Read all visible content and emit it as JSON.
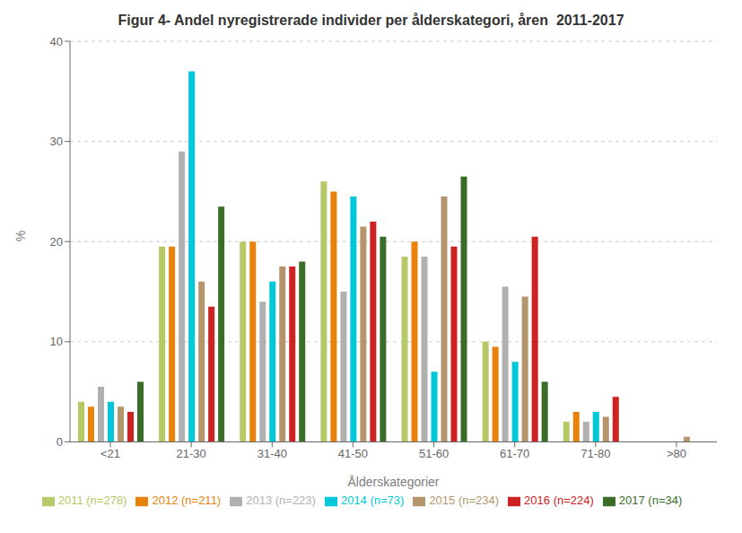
{
  "chart_data": {
    "type": "bar",
    "title": "Figur 4- Andel nyregistrerade individer per ålderskategori, åren  2011-2017",
    "x_label": "Ålderskategorier",
    "y_label": "%",
    "categories": [
      "<21",
      "21-30",
      "31-40",
      "41-50",
      "51-60",
      "61-70",
      "71-80",
      ">80"
    ],
    "series": [
      {
        "name": "2011 (n=278)",
        "color": "#b5c966",
        "values": [
          4.0,
          19.5,
          20.0,
          26.0,
          18.5,
          10.0,
          2.0,
          0.0
        ]
      },
      {
        "name": "2012 (n=211)",
        "color": "#e8820a",
        "values": [
          3.5,
          19.5,
          20.0,
          25.0,
          20.0,
          9.5,
          3.0,
          0.0
        ]
      },
      {
        "name": "2013 (n=223)",
        "color": "#b0b0b0",
        "values": [
          5.5,
          29.0,
          14.0,
          15.0,
          18.5,
          15.5,
          2.0,
          0.0
        ]
      },
      {
        "name": "2014 (n=73)",
        "color": "#00c8d8",
        "values": [
          4.0,
          37.0,
          16.0,
          24.5,
          7.0,
          8.0,
          3.0,
          0.0
        ]
      },
      {
        "name": "2015 (n=234)",
        "color": "#b5956c",
        "values": [
          3.5,
          16.0,
          17.5,
          21.5,
          24.5,
          14.5,
          2.5,
          0.5
        ]
      },
      {
        "name": "2016 (n=224)",
        "color": "#cc2222",
        "values": [
          3.0,
          13.5,
          17.5,
          22.0,
          19.5,
          20.5,
          4.5,
          0.0
        ]
      },
      {
        "name": "2017 (n=34)",
        "color": "#3a6e28",
        "values": [
          6.0,
          23.5,
          18.0,
          20.5,
          26.5,
          6.0,
          0.0,
          0.0
        ]
      }
    ],
    "ylim": [
      0,
      40
    ],
    "yticks": [
      0,
      10,
      20,
      30,
      40
    ],
    "grid": true,
    "legend": "bottom"
  }
}
